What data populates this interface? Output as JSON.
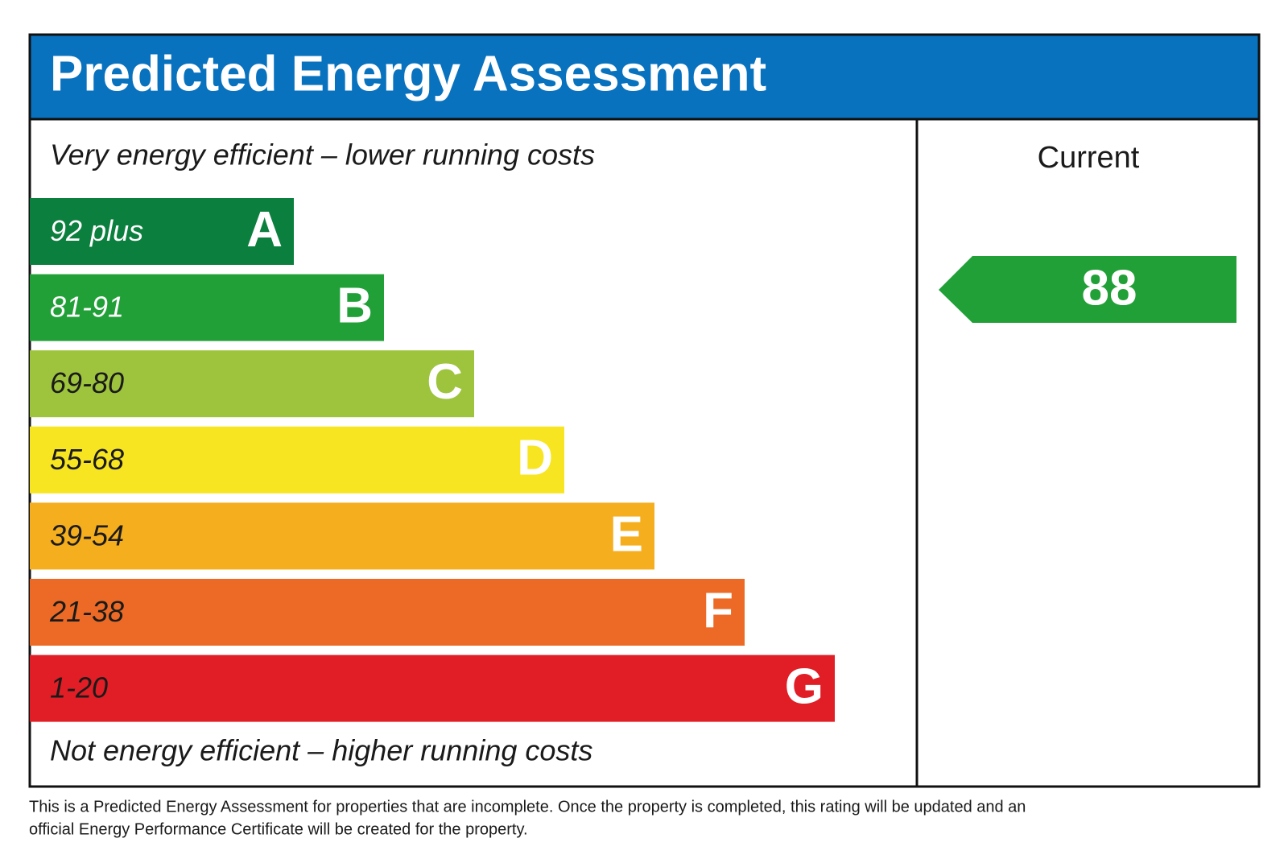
{
  "header": {
    "title": "Predicted Energy Assessment"
  },
  "top_label": "Very energy efficient – lower running costs",
  "bottom_label": "Not energy efficient – higher running costs",
  "bands": [
    {
      "range": "92 plus",
      "letter": "A",
      "color": "#0b7f3d",
      "text_color": "#ffffff"
    },
    {
      "range": "81-91",
      "letter": "B",
      "color": "#21a038",
      "text_color": "#ffffff"
    },
    {
      "range": "69-80",
      "letter": "C",
      "color": "#9dc43c",
      "text_color": "#1a1a1a"
    },
    {
      "range": "55-68",
      "letter": "D",
      "color": "#f8e521",
      "text_color": "#1a1a1a"
    },
    {
      "range": "39-54",
      "letter": "E",
      "color": "#f5ae1e",
      "text_color": "#1a1a1a"
    },
    {
      "range": "21-38",
      "letter": "F",
      "color": "#ec6a25",
      "text_color": "#1a1a1a"
    },
    {
      "range": "1-20",
      "letter": "G",
      "color": "#e11d25",
      "text_color": "#1a1a1a"
    }
  ],
  "current": {
    "label": "Current",
    "value": "88",
    "color": "#21a038"
  },
  "footnote": [
    "This is a Predicted Energy Assessment for properties that are incomplete. Once the property is completed, this rating will be updated and an",
    "official Energy Performance Certificate will be created for the property."
  ]
}
